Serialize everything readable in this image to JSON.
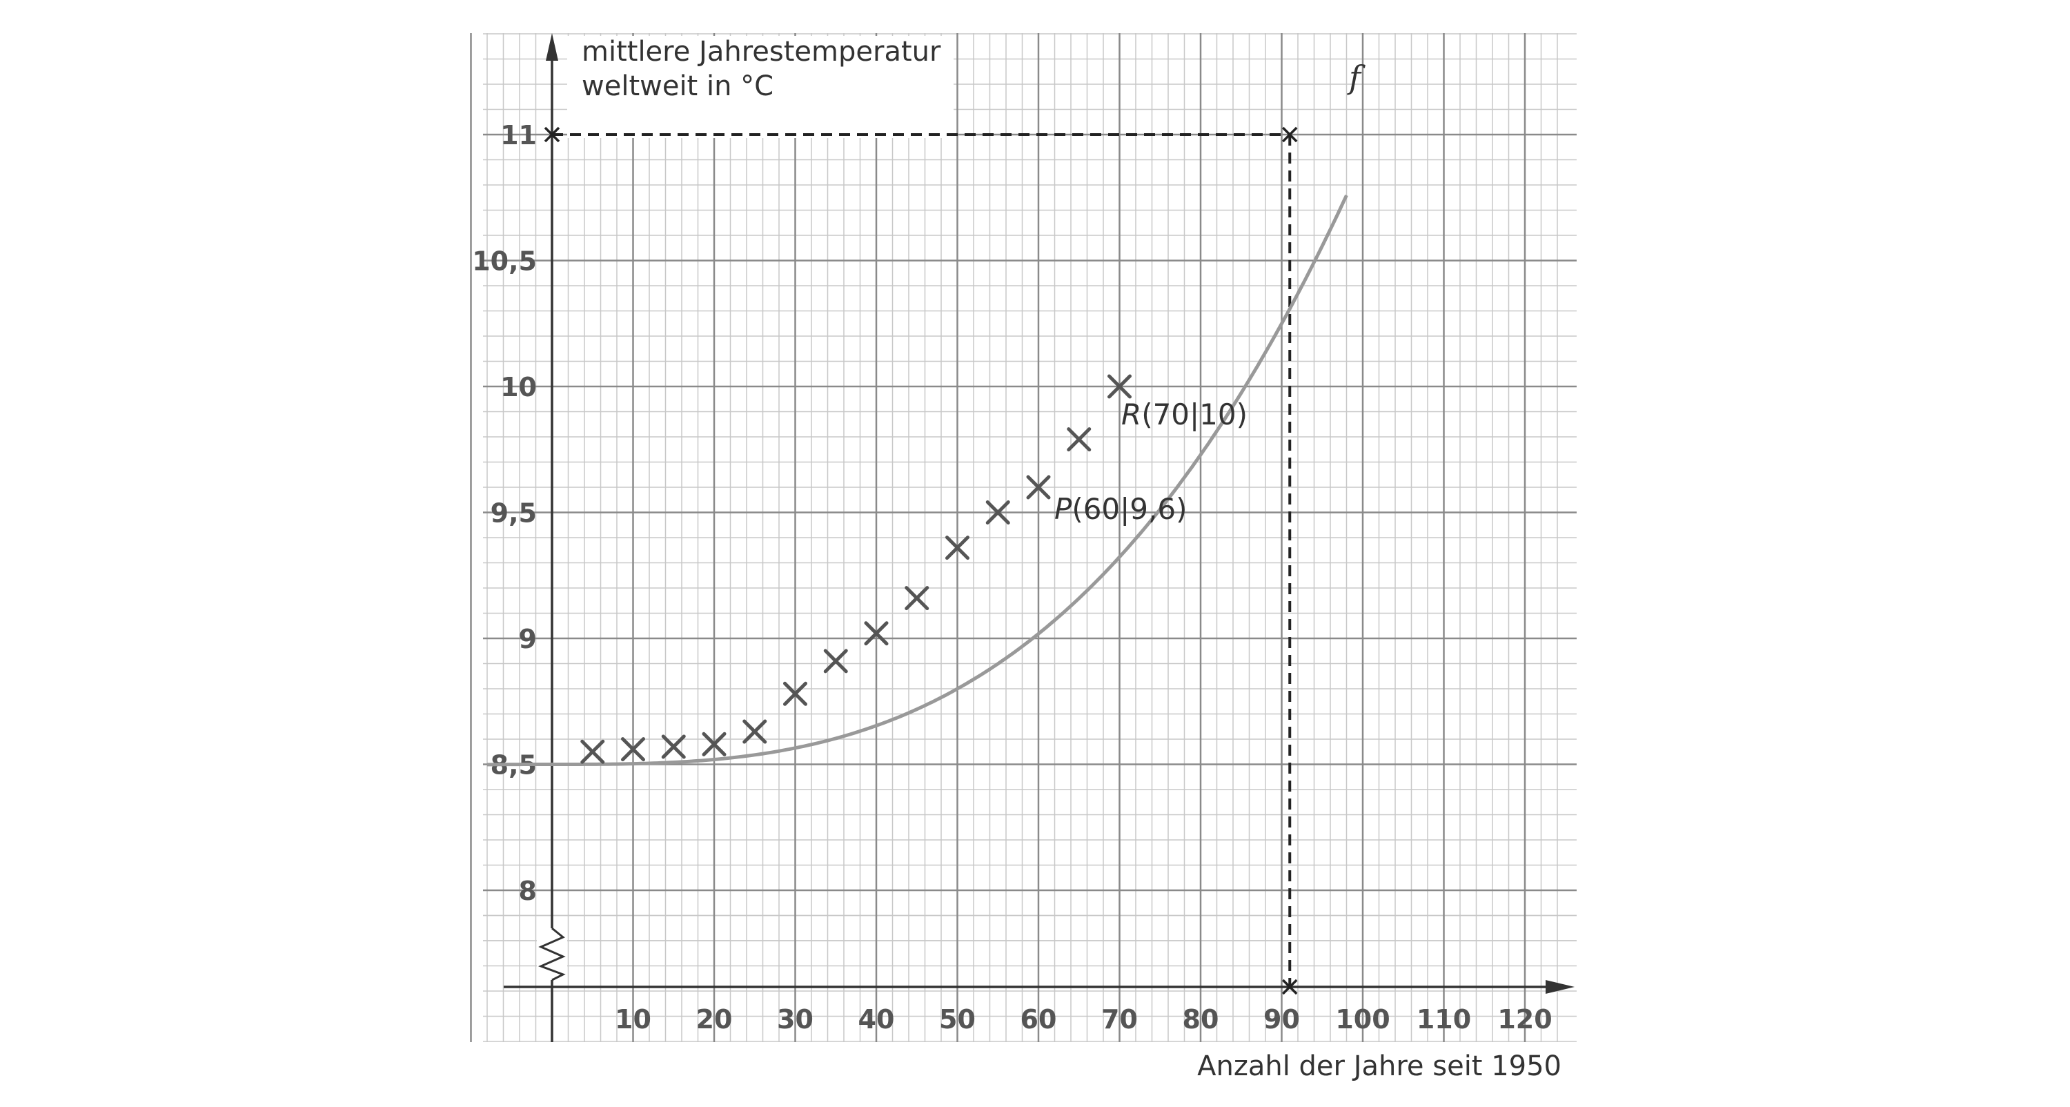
{
  "chart_data": {
    "type": "scatter",
    "ylabel_line1": "mittlere Jahrestemperatur",
    "ylabel_line2": "weltweit in °C",
    "xlabel": "Anzahl der Jahre seit 1950",
    "xlim": [
      -8,
      125
    ],
    "ylim": [
      7.6,
      11.4
    ],
    "x_ticks": [
      10,
      20,
      30,
      40,
      50,
      60,
      70,
      80,
      90,
      100,
      110,
      120
    ],
    "x_tick_labels": [
      "10",
      "20",
      "30",
      "40",
      "50",
      "60",
      "70",
      "80",
      "90",
      "100",
      "110",
      "120"
    ],
    "y_ticks": [
      8,
      8.5,
      9,
      9.5,
      10,
      10.5,
      11
    ],
    "y_tick_labels": [
      "8",
      "8,5",
      "9",
      "9,5",
      "10",
      "10,5",
      "11"
    ],
    "grid": true,
    "y_axis_break": true,
    "series": [
      {
        "marker": "x",
        "color": "#555555",
        "points": [
          {
            "x": 5,
            "y": 8.55
          },
          {
            "x": 10,
            "y": 8.56
          },
          {
            "x": 15,
            "y": 8.57
          },
          {
            "x": 20,
            "y": 8.58
          },
          {
            "x": 25,
            "y": 8.63
          },
          {
            "x": 30,
            "y": 8.78
          },
          {
            "x": 35,
            "y": 8.91
          },
          {
            "x": 40,
            "y": 9.02
          },
          {
            "x": 45,
            "y": 9.16
          },
          {
            "x": 50,
            "y": 9.36
          },
          {
            "x": 55,
            "y": 9.5
          },
          {
            "x": 60,
            "y": 9.6
          },
          {
            "x": 65,
            "y": 9.79
          },
          {
            "x": 70,
            "y": 10.0
          }
        ]
      }
    ],
    "curve": {
      "name": "f",
      "color": "#999999",
      "formula": "f(x) = 8.5 + 0.0000024 * x^3",
      "x_range": [
        -8,
        98
      ]
    },
    "annotations": [
      {
        "text": "R(70|10)",
        "italic_letter": "R",
        "rest": "(70|10)",
        "x": 70,
        "y": 10
      },
      {
        "text": "P(60|9,6)",
        "italic_letter": "P",
        "rest": "(60|9,6)",
        "x": 60,
        "y": 9.6
      }
    ],
    "reference_point": {
      "x": 91,
      "y": 11
    }
  }
}
